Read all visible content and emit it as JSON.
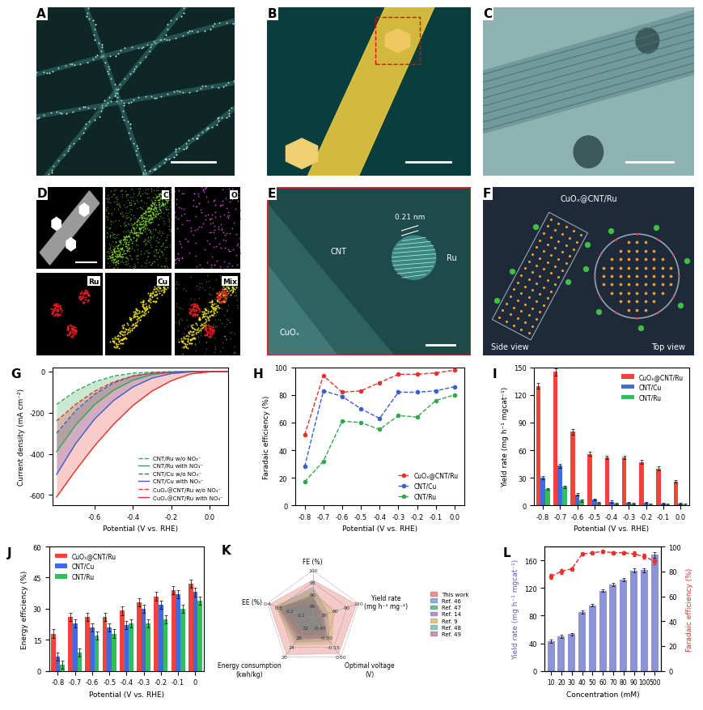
{
  "images": [
    {
      "panel_label": "A"
    },
    {
      "panel_label": "B"
    },
    {
      "panel_label": "C"
    },
    {
      "panel_label": "D",
      "maps": [
        "C",
        "O",
        "Ru",
        "Cu",
        "Mix"
      ]
    },
    {
      "panel_label": "E",
      "lattice_spacing": "0.21 nm",
      "particle": "Ru",
      "support": "CNT",
      "core": "CuOₓ"
    },
    {
      "panel_label": "F",
      "title": "CuOₓ@CNT/Ru",
      "views": [
        "Side view",
        "Top view"
      ]
    }
  ],
  "chart_data": [
    {
      "panel_label": "G",
      "type": "line",
      "x": [
        -0.8,
        -0.7,
        -0.6,
        -0.5,
        -0.4,
        -0.3,
        -0.2,
        -0.1,
        0.0,
        0.1
      ],
      "xlabel": "Potential (V vs. RHE)",
      "ylabel": "Current density (mA cm⁻²)",
      "xlim": [
        -0.82,
        0.1
      ],
      "ylim": [
        -650,
        20
      ],
      "xticks": [
        -0.6,
        -0.4,
        -0.2,
        0.0
      ],
      "yticks": [
        -600,
        -400,
        -200,
        0
      ],
      "legend": "lower right",
      "series": [
        {
          "name": "CNT/Ru w/o NO₃⁻",
          "color": "#2fa84f",
          "line_style": "dashed",
          "values": [
            -160,
            -95,
            -50,
            -22,
            -8,
            -3,
            -1,
            0,
            0,
            0
          ]
        },
        {
          "name": "CNT/Ru with NO₃⁻",
          "color": "#2fa84f",
          "line_style": "solid",
          "values": [
            -390,
            -260,
            -160,
            -90,
            -42,
            -15,
            -4,
            -1,
            0,
            0
          ]
        },
        {
          "name": "CNT/Cu w/o NO₃⁻",
          "color": "#3a5fcd",
          "line_style": "dashed",
          "values": [
            -300,
            -190,
            -110,
            -55,
            -22,
            -7,
            -2,
            0,
            0,
            0
          ]
        },
        {
          "name": "CNT/Cu with NO₃⁻",
          "color": "#3a5fcd",
          "line_style": "solid",
          "values": [
            -500,
            -350,
            -230,
            -140,
            -75,
            -32,
            -10,
            -2,
            0,
            0
          ]
        },
        {
          "name": "CuOₓ@CNT/Ru w/o NO₃⁻",
          "color": "#e8312a",
          "line_style": "dashed",
          "values": [
            -240,
            -160,
            -95,
            -50,
            -22,
            -9,
            -3,
            -1,
            0,
            0
          ]
        },
        {
          "name": "CuOₓ@CNT/Ru with NO₃⁻",
          "color": "#e8312a",
          "line_style": "solid",
          "values": [
            -610,
            -480,
            -360,
            -255,
            -165,
            -95,
            -45,
            -12,
            -2,
            0
          ]
        }
      ]
    },
    {
      "panel_label": "H",
      "type": "line",
      "x": [
        -0.8,
        -0.7,
        -0.6,
        -0.5,
        -0.4,
        -0.3,
        -0.2,
        -0.1,
        0.0
      ],
      "xlabel": "Potential (V vs. RHE)",
      "ylabel": "Faradaic efficiency (%)",
      "xlim": [
        -0.85,
        0.05
      ],
      "ylim": [
        0,
        100
      ],
      "xticks": [
        -0.8,
        -0.7,
        -0.6,
        -0.5,
        -0.4,
        -0.3,
        -0.2,
        -0.1,
        0.0
      ],
      "yticks": [
        0,
        20,
        40,
        60,
        80,
        100
      ],
      "legend": "lower right",
      "marker": "o",
      "line_style": "dashed",
      "series": [
        {
          "name": "CuOₓ@CNT/Ru",
          "color": "#e8312a",
          "values": [
            51,
            94,
            82,
            83,
            89,
            95,
            95,
            96,
            98
          ]
        },
        {
          "name": "CNT/Cu",
          "color": "#3a5fcd",
          "values": [
            28,
            83,
            79,
            70,
            63,
            82,
            82,
            83,
            86
          ]
        },
        {
          "name": "CNT/Ru",
          "color": "#2fa84f",
          "values": [
            17,
            32,
            61,
            60,
            55,
            65,
            64,
            76,
            80
          ]
        }
      ]
    },
    {
      "panel_label": "I",
      "type": "bar",
      "categories": [
        "-0.8",
        "-0.7",
        "-0.6",
        "-0.5",
        "-0.4",
        "-0.3",
        "-0.2",
        "-0.1",
        "0.0"
      ],
      "xlabel": "Potential (V vs. RHE)",
      "ylabel": "Yield rate (mg h⁻¹ mgcat⁻¹)",
      "ylim": [
        0,
        150
      ],
      "yticks": [
        0,
        30,
        60,
        90,
        120,
        150
      ],
      "legend": "upper right",
      "series": [
        {
          "name": "CuOₓ@CNT/Ru",
          "color": "#f0443a",
          "values": [
            130,
            145,
            80,
            56,
            52,
            52,
            47,
            40,
            26
          ],
          "errors": [
            3,
            4,
            3,
            2,
            2,
            2,
            2,
            2,
            1
          ]
        },
        {
          "name": "CNT/Cu",
          "color": "#4169e1",
          "values": [
            30,
            43,
            12,
            6,
            4,
            3,
            3,
            2,
            2
          ],
          "errors": [
            2,
            2,
            1,
            1,
            1,
            1,
            1,
            1,
            1
          ]
        },
        {
          "name": "CNT/Ru",
          "color": "#2fbf5f",
          "values": [
            18,
            20,
            5,
            3,
            2,
            2,
            1,
            1,
            1
          ],
          "errors": [
            1,
            1,
            1,
            1,
            1,
            1,
            1,
            1,
            1
          ]
        }
      ]
    },
    {
      "panel_label": "J",
      "type": "bar",
      "categories": [
        "-0.8",
        "-0.7",
        "-0.6",
        "-0.5",
        "-0.4",
        "-0.3",
        "-0.2",
        "-0.1",
        "0"
      ],
      "xlabel": "Potential (V vs. RHE)",
      "ylabel": "Energy efficiency (%)",
      "ylim": [
        0,
        60
      ],
      "yticks": [
        0,
        15,
        30,
        45,
        60
      ],
      "legend": "upper left",
      "series": [
        {
          "name": "CuOₓ@CNT/Ru",
          "color": "#f0443a",
          "values": [
            18,
            26,
            26,
            26,
            29,
            33,
            36,
            39,
            42
          ],
          "errors": [
            2,
            2,
            2,
            2,
            2,
            2,
            2,
            2,
            2
          ]
        },
        {
          "name": "CNT/Cu",
          "color": "#4169e1",
          "values": [
            7,
            23,
            21,
            21,
            22,
            30,
            32,
            37,
            38
          ],
          "errors": [
            2,
            2,
            2,
            2,
            2,
            2,
            2,
            2,
            2
          ]
        },
        {
          "name": "CNT/Ru",
          "color": "#2fbf5f",
          "values": [
            3,
            9,
            17,
            18,
            23,
            23,
            25,
            30,
            34
          ],
          "errors": [
            2,
            2,
            2,
            2,
            2,
            2,
            2,
            2,
            2
          ]
        }
      ]
    },
    {
      "panel_label": "K",
      "type": "radar",
      "legend": "center left",
      "axes": [
        {
          "label": "FE (%)",
          "range": [
            80,
            100
          ],
          "ticks": [
            85,
            90,
            95,
            100
          ]
        },
        {
          "label": "Yield rate\n(mg h⁻¹ mg⁻¹)",
          "range": [
            0,
            120
          ],
          "ticks": [
            30,
            60,
            90,
            120
          ]
        },
        {
          "label": "Optimal voltage\n(V)",
          "range": [
            -0.6,
            0.0
          ],
          "ticks": [
            {
              "value": -0.45,
              "label": "-0.45"
            },
            {
              "value": -0.3,
              "label": "-0.30"
            },
            {
              "value": -0.15,
              "label": "-0.15"
            },
            {
              "value": 0.0,
              "label": "0.00"
            }
          ]
        },
        {
          "label": "Energy consumption\n(kwh/kg)",
          "range": [
            36,
            20
          ],
          "ticks": [
            32,
            28,
            24,
            20
          ]
        },
        {
          "label": "EE (%)",
          "range": [
            0.0,
            0.4
          ],
          "ticks": [
            0.1,
            0.2,
            0.3,
            0.4
          ]
        }
      ],
      "series": [
        {
          "name": "This work",
          "color": "#d9534f",
          "values": [
            96,
            115,
            -0.05,
            21,
            0.38
          ]
        },
        {
          "name": "Ref. 46",
          "color": "#4f81bd",
          "values": [
            93,
            40,
            -0.25,
            26,
            0.32
          ]
        },
        {
          "name": "Ref. 47",
          "color": "#2e8b57",
          "values": [
            90,
            20,
            -0.35,
            29,
            0.28
          ]
        },
        {
          "name": "Ref. 14",
          "color": "#7b5ea7",
          "values": [
            88,
            30,
            -0.3,
            28,
            0.3
          ]
        },
        {
          "name": "Ref. 9",
          "color": "#c8a040",
          "values": [
            92,
            55,
            -0.2,
            25,
            0.33
          ]
        },
        {
          "name": "Ref. 48",
          "color": "#4aa3a3",
          "values": [
            86,
            15,
            -0.4,
            31,
            0.25
          ]
        },
        {
          "name": "Ref. 49",
          "color": "#a06070",
          "values": [
            89,
            25,
            -0.3,
            27,
            0.3
          ]
        }
      ]
    },
    {
      "panel_label": "L",
      "type": "bar_line",
      "categories": [
        "10",
        "20",
        "30",
        "40",
        "50",
        "60",
        "70",
        "80",
        "90",
        "100",
        "500"
      ],
      "xlabel": "Concentration (mM)",
      "ylabel": "Yield rate (mg h⁻¹ mgcat⁻¹)",
      "y2label": "Faradaic efficiency (%)",
      "ylim": [
        0,
        180
      ],
      "yticks": [
        0,
        40,
        80,
        120,
        160
      ],
      "y2lim": [
        0,
        100
      ],
      "y2ticks": [
        0,
        20,
        40,
        60,
        80,
        100
      ],
      "series": [
        {
          "type": "bar",
          "color": "#8c93d6",
          "values": [
            43,
            50,
            53,
            85,
            95,
            116,
            125,
            132,
            145,
            146,
            168
          ],
          "errors": [
            2,
            2,
            2,
            2,
            2,
            2,
            2,
            2,
            3,
            3,
            4
          ]
        },
        {
          "type": "line",
          "axis": "y2",
          "color": "#e8312a",
          "marker": "o",
          "line_style": "dashed",
          "values": [
            76,
            80,
            82,
            94,
            95,
            96,
            95,
            95,
            94,
            92,
            88
          ],
          "errors": [
            2,
            2,
            1,
            1,
            1,
            1,
            1,
            1,
            2,
            2,
            2
          ]
        }
      ]
    }
  ]
}
